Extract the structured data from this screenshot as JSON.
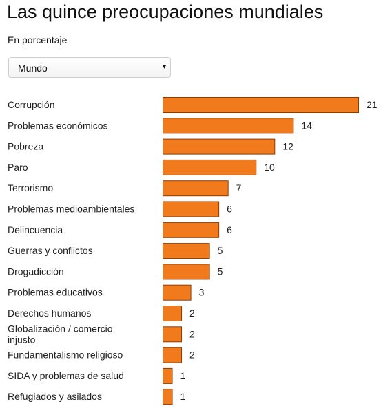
{
  "header": {
    "title": "Las quince preocupaciones mundiales",
    "subtitle": "En porcentaje"
  },
  "selector": {
    "value": "Mundo",
    "caret": "▾"
  },
  "colors": {
    "bar_fill": "#f07a1c",
    "bar_stroke": "#8a3d08"
  },
  "chart_data": {
    "type": "bar",
    "orientation": "horizontal",
    "categories": [
      [
        "Corrupción"
      ],
      [
        "Problemas económicos"
      ],
      [
        "Pobreza"
      ],
      [
        "Paro"
      ],
      [
        "Terrorismo"
      ],
      [
        "Problemas medioambientales"
      ],
      [
        "Delincuencia"
      ],
      [
        "Guerras y conflictos"
      ],
      [
        "Drogadicción"
      ],
      [
        "Problemas educativos"
      ],
      [
        "Derechos humanos"
      ],
      [
        "Globalización / comercio",
        "injusto"
      ],
      [
        "Fundamentalismo religioso"
      ],
      [
        "SIDA y problemas de salud"
      ],
      [
        "Refugiados y asilados"
      ]
    ],
    "values": [
      21,
      14,
      12,
      10,
      7,
      6,
      6,
      5,
      5,
      3,
      2,
      2,
      2,
      1,
      1
    ],
    "xlim": [
      0,
      21
    ],
    "grid": false,
    "legend": "none"
  }
}
